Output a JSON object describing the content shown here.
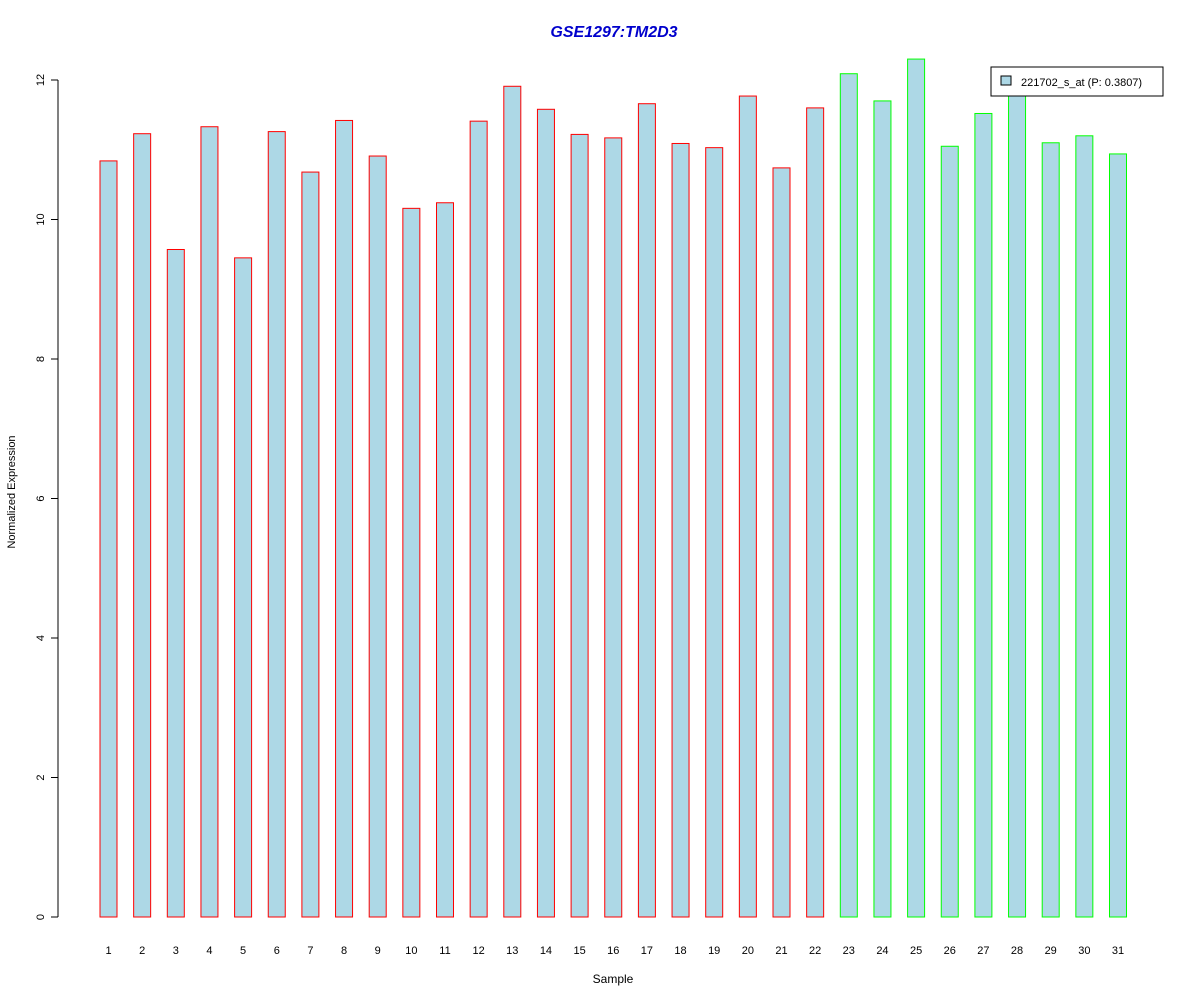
{
  "chart_data": {
    "type": "bar",
    "title": "GSE1297:TM2D3",
    "xlabel": "Sample",
    "ylabel": "Normalized Expression",
    "ylim": [
      0,
      12
    ],
    "yticks": [
      0,
      2,
      4,
      6,
      8,
      10,
      12
    ],
    "categories": [
      "1",
      "2",
      "3",
      "4",
      "5",
      "6",
      "7",
      "8",
      "9",
      "10",
      "11",
      "12",
      "13",
      "14",
      "15",
      "16",
      "17",
      "18",
      "19",
      "20",
      "21",
      "22",
      "23",
      "24",
      "25",
      "26",
      "27",
      "28",
      "29",
      "30",
      "31"
    ],
    "series": [
      {
        "name": "221702_s_at (P: 0.3807)",
        "values": [
          10.84,
          11.23,
          9.57,
          11.33,
          9.45,
          11.26,
          10.68,
          11.42,
          10.91,
          10.16,
          10.24,
          11.41,
          11.91,
          11.58,
          11.22,
          11.17,
          11.66,
          11.09,
          11.03,
          11.77,
          10.74,
          11.6,
          12.09,
          11.7,
          12.3,
          11.05,
          11.52,
          11.9,
          11.1,
          11.2,
          10.94
        ]
      }
    ],
    "groups": [
      {
        "from": 1,
        "to": 22,
        "border_color": "#ff0000"
      },
      {
        "from": 23,
        "to": 31,
        "border_color": "#00ff00"
      }
    ],
    "fill_color": "#add8e6",
    "title_color": "#0000cc",
    "legend_position": "top-right",
    "grid": false
  }
}
